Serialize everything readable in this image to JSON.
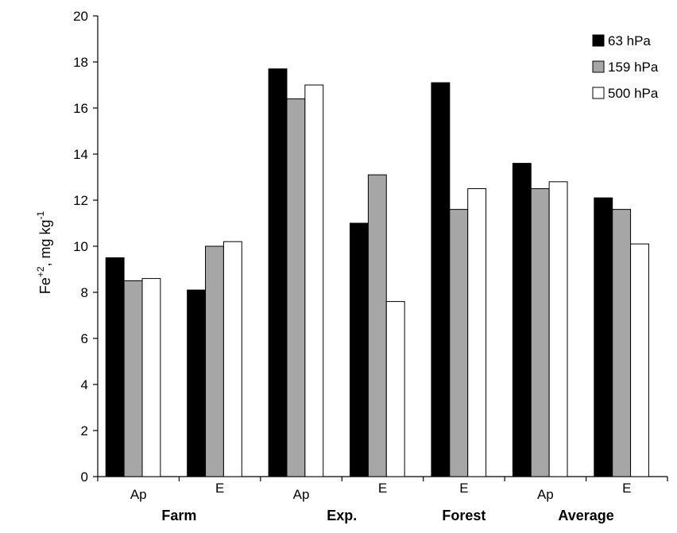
{
  "chart_data": {
    "type": "bar",
    "ylabel_base": "Fe",
    "ylabel_sup": "+2",
    "ylabel_unit": ", mg kg",
    "ylabel_unit_sup": "-1",
    "ylim": [
      0,
      20
    ],
    "yticks": [
      0,
      2,
      4,
      6,
      8,
      10,
      12,
      14,
      16,
      18,
      20
    ],
    "grid": false,
    "legend_position": "top-right",
    "categories": [
      "Ap",
      "E",
      "Ap",
      "E",
      "E",
      "Ap",
      "E"
    ],
    "groups": [
      {
        "label": "Farm",
        "categories": [
          "Ap",
          "E"
        ]
      },
      {
        "label": "Exp.",
        "categories": [
          "Ap",
          "E"
        ]
      },
      {
        "label": "Forest",
        "categories": [
          "E"
        ]
      },
      {
        "label": "Average",
        "categories": [
          "Ap",
          "E"
        ]
      }
    ],
    "series": [
      {
        "name": "63 hPa",
        "color": "#000000",
        "values": [
          9.5,
          8.1,
          17.7,
          11.0,
          17.1,
          13.6,
          12.1
        ]
      },
      {
        "name": "159 hPa",
        "color": "#a6a6a6",
        "values": [
          8.5,
          10.0,
          16.4,
          13.1,
          11.6,
          12.5,
          11.6
        ]
      },
      {
        "name": "500 hPa",
        "color": "#ffffff",
        "values": [
          8.6,
          10.2,
          17.0,
          7.6,
          12.5,
          12.8,
          10.1
        ]
      }
    ]
  }
}
